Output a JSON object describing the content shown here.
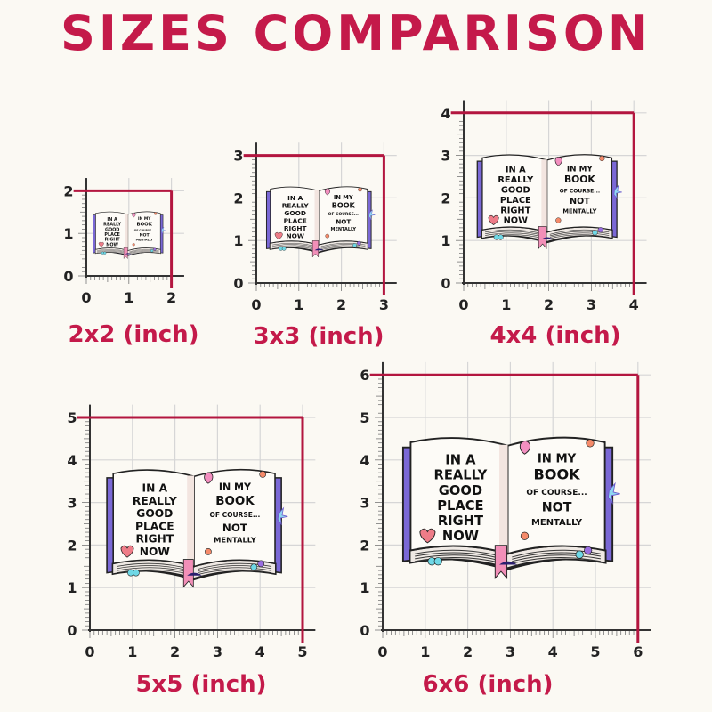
{
  "title": "SIZES COMPARISON",
  "colors": {
    "accent": "#c41a4a",
    "frame_line": "#b3163f",
    "grid": "#d6d6d6",
    "axis": "#333333",
    "background": "#fbf9f3",
    "book_cover": "#7a68d6",
    "ribbon": "#f28fb8"
  },
  "book_text": {
    "left_page": [
      "IN A",
      "REALLY",
      "GOOD",
      "PLACE",
      "RIGHT",
      "NOW"
    ],
    "right_page": [
      "IN MY",
      "BOOK",
      "OF COURSE...",
      "NOT",
      "MENTALLY"
    ]
  },
  "panels": [
    {
      "size": 2,
      "caption": "2x2 (inch)",
      "ticks": [
        "0",
        "1",
        "2"
      ]
    },
    {
      "size": 3,
      "caption": "3x3 (inch)",
      "ticks": [
        "0",
        "1",
        "2",
        "3"
      ]
    },
    {
      "size": 4,
      "caption": "4x4 (inch)",
      "ticks": [
        "0",
        "1",
        "2",
        "3",
        "4"
      ]
    },
    {
      "size": 5,
      "caption": "5x5 (inch)",
      "ticks": [
        "0",
        "1",
        "2",
        "3",
        "4",
        "5"
      ]
    },
    {
      "size": 6,
      "caption": "6x6 (inch)",
      "ticks": [
        "0",
        "1",
        "2",
        "3",
        "4",
        "5",
        "6"
      ]
    }
  ]
}
